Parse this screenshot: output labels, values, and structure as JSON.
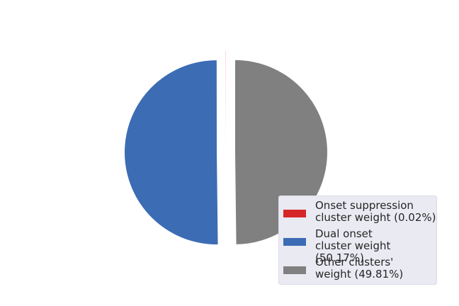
{
  "chart_data": {
    "type": "pie",
    "title": "",
    "slices": [
      {
        "label": "Onset suppression\ncluster weight (0.02%)",
        "value": 0.02,
        "color": "#d62728"
      },
      {
        "label": "Dual onset\ncluster weight (50.17%)",
        "value": 50.17,
        "color": "#3c6cb4"
      },
      {
        "label": "Other clusters'\nweight (49.81%)",
        "value": 49.81,
        "color": "#808080"
      }
    ],
    "exploded": true,
    "start_angle_deg": 90,
    "direction": "counterclockwise",
    "legend_position": "lower-right"
  }
}
